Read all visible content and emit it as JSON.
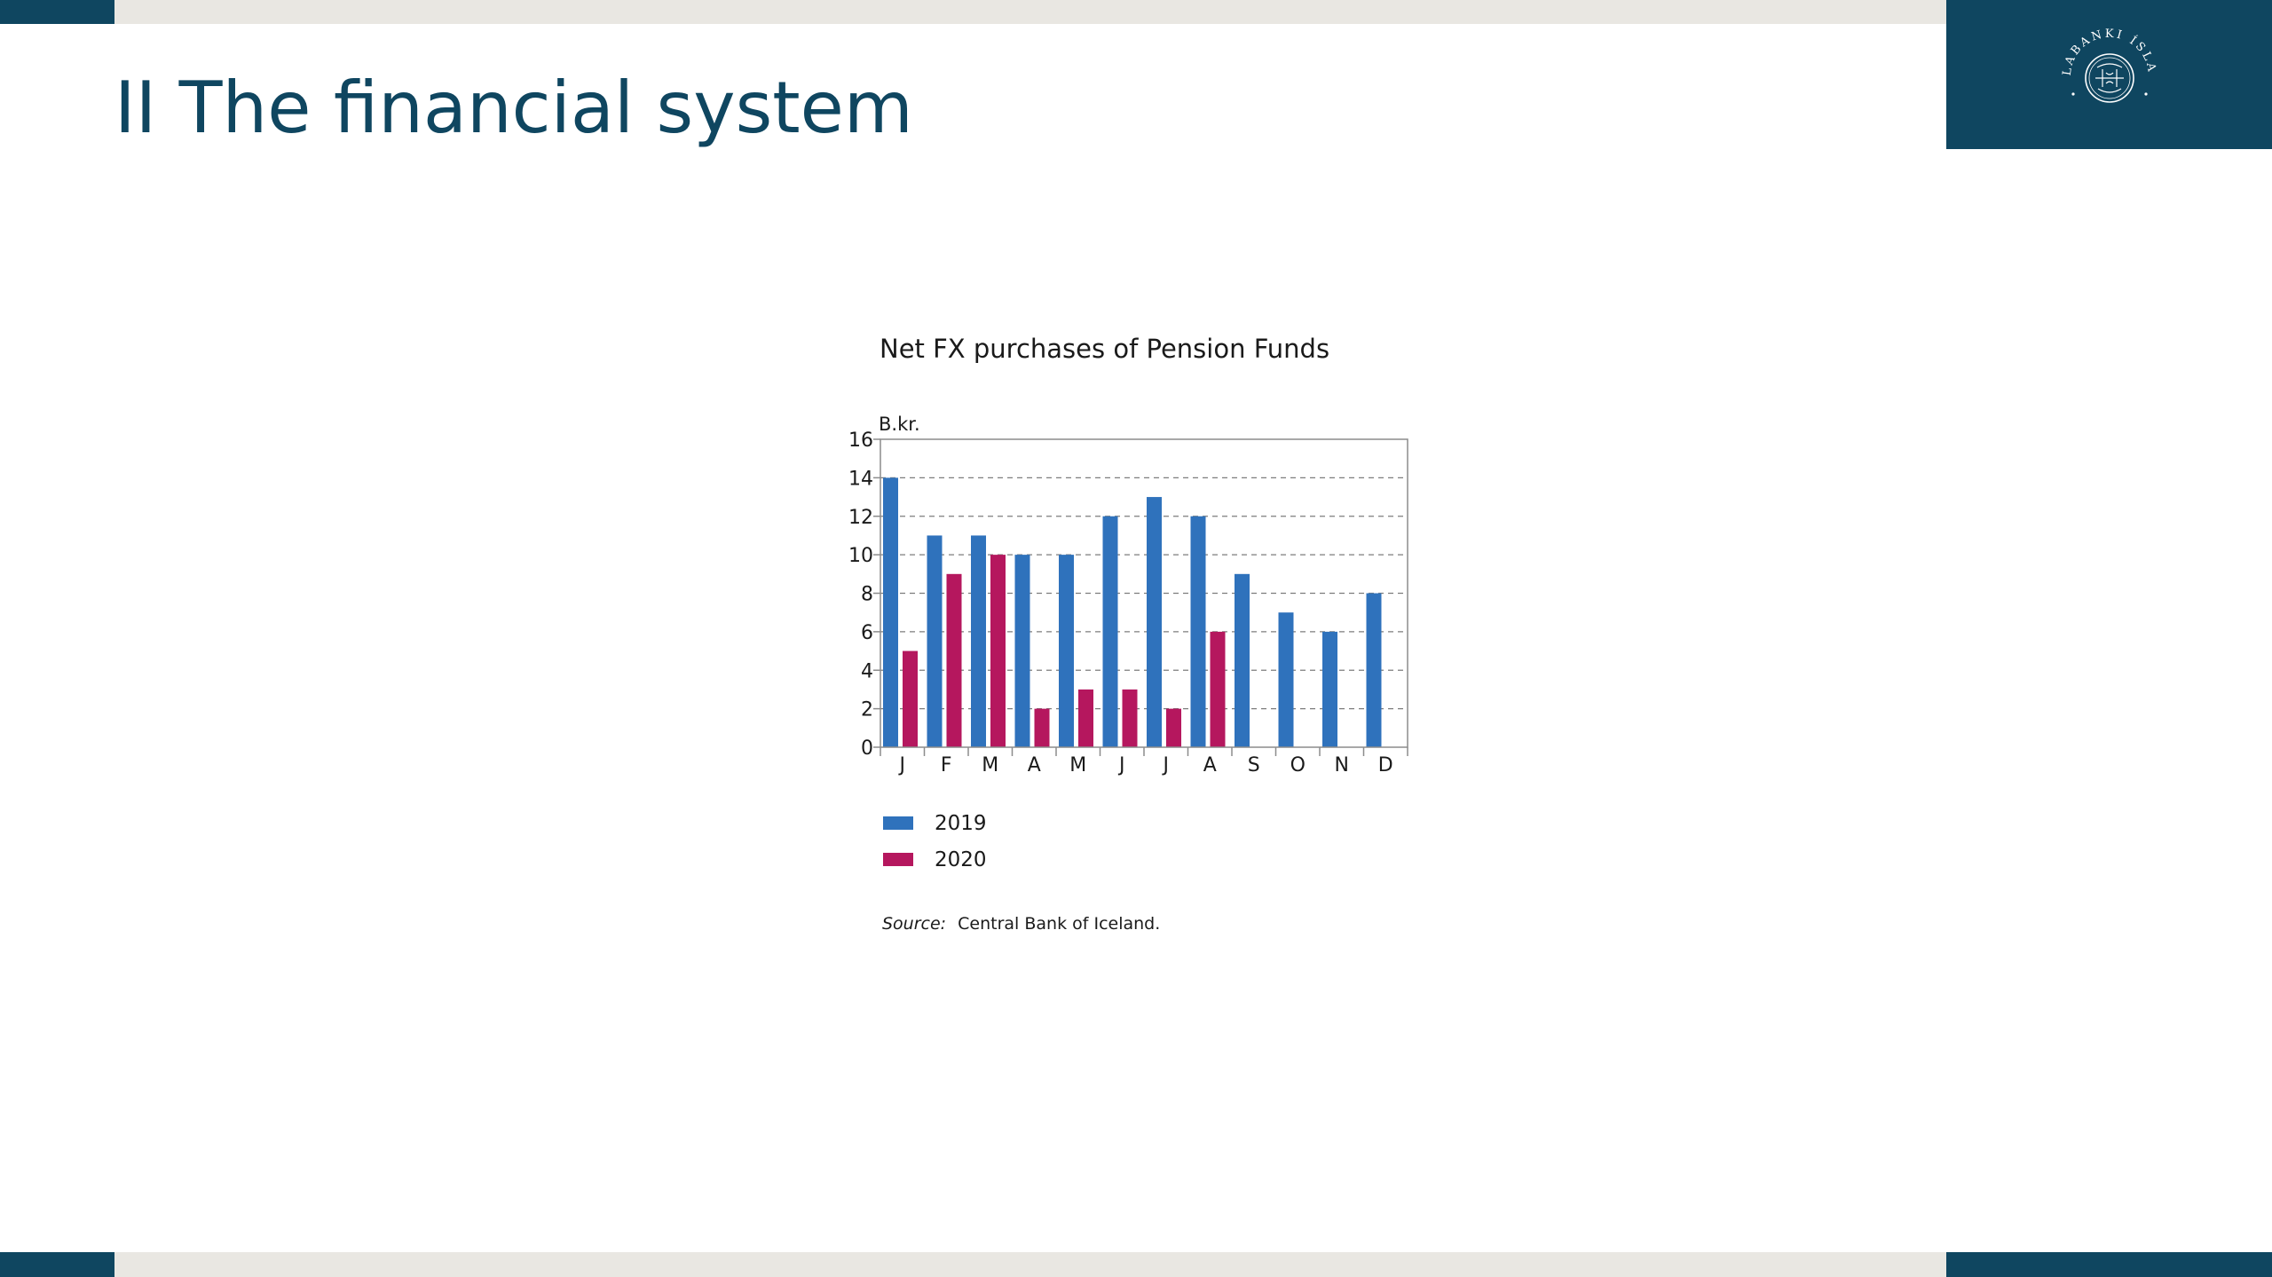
{
  "slide": {
    "title": "II The financial system",
    "colors": {
      "brand": "#0f4660",
      "strip": "#e9e7e2"
    },
    "logo": {
      "icon": "central-bank-seal-icon",
      "text": "SEÐLABANKI ÍSLANDS"
    }
  },
  "chart_data": {
    "type": "bar",
    "title": "Net FX purchases of Pension Funds",
    "unit_label": "B.kr.",
    "xlabel": "",
    "ylabel": "",
    "categories": [
      "J",
      "F",
      "M",
      "A",
      "M",
      "J",
      "J",
      "A",
      "S",
      "O",
      "N",
      "D"
    ],
    "series": [
      {
        "name": "2019",
        "color": "#2f72bc",
        "values": [
          14,
          11,
          11,
          10,
          10,
          12,
          13,
          12,
          9,
          7,
          6,
          8
        ]
      },
      {
        "name": "2020",
        "color": "#b5175e",
        "values": [
          5,
          9,
          10,
          2,
          3,
          3,
          2,
          6,
          null,
          null,
          null,
          null
        ]
      }
    ],
    "ylim": [
      0,
      16
    ],
    "yticks": [
      0,
      2,
      4,
      6,
      8,
      10,
      12,
      14,
      16
    ],
    "grid": true,
    "legend_position": "bottom-left",
    "source_prefix": "Source:",
    "source": "Central Bank of Iceland."
  }
}
